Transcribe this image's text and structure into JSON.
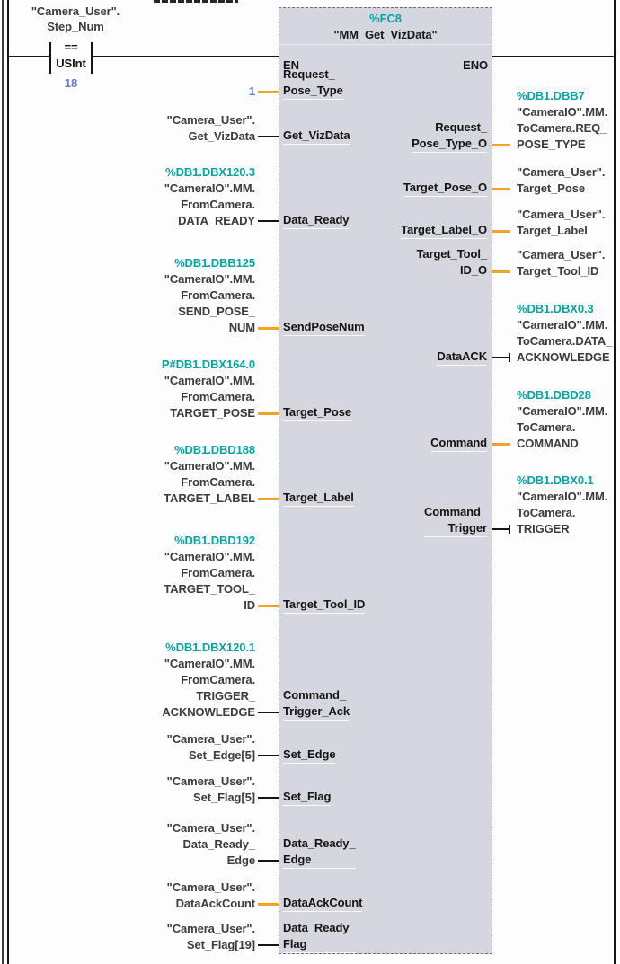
{
  "colors": {
    "address_teal": "#0aa3a3",
    "value_blue": "#6379d3",
    "wire_amber": "#efa426",
    "wire_black": "#141414",
    "block_fill": "#d6d6de"
  },
  "comparator": {
    "operand_lines": [
      "\"Camera_User\".",
      "Step_Num"
    ],
    "operator": "==",
    "data_type": "USInt",
    "compare_value": "18"
  },
  "block": {
    "address": "%FC8",
    "title": "\"MM_Get_VizData\"",
    "en": "EN",
    "eno": "ENO",
    "left_pins": [
      {
        "id": "request-pose-type",
        "label_lines": [
          "Request_",
          "Pose_Type"
        ],
        "operand_lines": [
          {
            "text": "1",
            "kind": "value"
          }
        ],
        "wire": "amber"
      },
      {
        "id": "get-vizdata",
        "label_lines": [
          "Get_VizData"
        ],
        "operand_lines": [
          {
            "text": "\"Camera_User\".",
            "kind": "name"
          },
          {
            "text": "Get_VizData",
            "kind": "name"
          }
        ],
        "wire": "black"
      },
      {
        "id": "data-ready",
        "label_lines": [
          "Data_Ready"
        ],
        "operand_lines": [
          {
            "text": "%DB1.DBX120.3",
            "kind": "address"
          },
          {
            "text": "\"CameraIO\".MM.",
            "kind": "name"
          },
          {
            "text": "FromCamera.",
            "kind": "name"
          },
          {
            "text": "DATA_READY",
            "kind": "name"
          }
        ],
        "wire": "black"
      },
      {
        "id": "sendposenum",
        "label_lines": [
          "SendPoseNum"
        ],
        "operand_lines": [
          {
            "text": "%DB1.DBB125",
            "kind": "address"
          },
          {
            "text": "\"CameraIO\".MM.",
            "kind": "name"
          },
          {
            "text": "FromCamera.",
            "kind": "name"
          },
          {
            "text": "SEND_POSE_",
            "kind": "name"
          },
          {
            "text": "NUM",
            "kind": "name"
          }
        ],
        "wire": "amber"
      },
      {
        "id": "target-pose",
        "label_lines": [
          "Target_Pose"
        ],
        "operand_lines": [
          {
            "text": "P#DB1.DBX164.0",
            "kind": "address"
          },
          {
            "text": "\"CameraIO\".MM.",
            "kind": "name"
          },
          {
            "text": "FromCamera.",
            "kind": "name"
          },
          {
            "text": "TARGET_POSE",
            "kind": "name"
          }
        ],
        "wire": "amber"
      },
      {
        "id": "target-label",
        "label_lines": [
          "Target_Label"
        ],
        "operand_lines": [
          {
            "text": "%DB1.DBD188",
            "kind": "address"
          },
          {
            "text": "\"CameraIO\".MM.",
            "kind": "name"
          },
          {
            "text": "FromCamera.",
            "kind": "name"
          },
          {
            "text": "TARGET_LABEL",
            "kind": "name"
          }
        ],
        "wire": "amber"
      },
      {
        "id": "target-tool-id",
        "label_lines": [
          "Target_Tool_ID"
        ],
        "operand_lines": [
          {
            "text": "%DB1.DBD192",
            "kind": "address"
          },
          {
            "text": "\"CameraIO\".MM.",
            "kind": "name"
          },
          {
            "text": "FromCamera.",
            "kind": "name"
          },
          {
            "text": "TARGET_TOOL_",
            "kind": "name"
          },
          {
            "text": "ID",
            "kind": "name"
          }
        ],
        "wire": "amber"
      },
      {
        "id": "command-trigger-ack",
        "label_lines": [
          "Command_",
          "Trigger_Ack"
        ],
        "operand_lines": [
          {
            "text": "%DB1.DBX120.1",
            "kind": "address"
          },
          {
            "text": "\"CameraIO\".MM.",
            "kind": "name"
          },
          {
            "text": "FromCamera.",
            "kind": "name"
          },
          {
            "text": "TRIGGER_",
            "kind": "name"
          },
          {
            "text": "ACKNOWLEDGE",
            "kind": "name"
          }
        ],
        "wire": "black"
      },
      {
        "id": "set-edge",
        "label_lines": [
          "Set_Edge"
        ],
        "operand_lines": [
          {
            "text": "\"Camera_User\".",
            "kind": "name"
          },
          {
            "text": "Set_Edge[5]",
            "kind": "name"
          }
        ],
        "wire": "black"
      },
      {
        "id": "set-flag",
        "label_lines": [
          "Set_Flag"
        ],
        "operand_lines": [
          {
            "text": "\"Camera_User\".",
            "kind": "name"
          },
          {
            "text": "Set_Flag[5]",
            "kind": "name"
          }
        ],
        "wire": "black"
      },
      {
        "id": "data-ready-edge",
        "label_lines": [
          "Data_Ready_",
          "Edge"
        ],
        "operand_lines": [
          {
            "text": "\"Camera_User\".",
            "kind": "name"
          },
          {
            "text": "Data_Ready_",
            "kind": "name"
          },
          {
            "text": "Edge",
            "kind": "name"
          }
        ],
        "wire": "black"
      },
      {
        "id": "dataackcount",
        "label_lines": [
          "DataAckCount"
        ],
        "operand_lines": [
          {
            "text": "\"Camera_User\".",
            "kind": "name"
          },
          {
            "text": "DataAckCount",
            "kind": "name"
          }
        ],
        "wire": "amber"
      },
      {
        "id": "data-ready-flag",
        "label_lines": [
          "Data_Ready_",
          "Flag"
        ],
        "operand_lines": [
          {
            "text": "\"Camera_User\".",
            "kind": "name"
          },
          {
            "text": "Set_Flag[19]",
            "kind": "name"
          }
        ],
        "wire": "black"
      }
    ],
    "right_pins": [
      {
        "id": "request-pose-type-o",
        "label_lines": [
          "Request_",
          "Pose_Type_O"
        ],
        "operand_lines": [
          {
            "text": "%DB1.DBB7",
            "kind": "address"
          },
          {
            "text": "\"CameraIO\".MM.",
            "kind": "name"
          },
          {
            "text": "ToCamera.REQ_",
            "kind": "name"
          },
          {
            "text": "POSE_TYPE",
            "kind": "name"
          }
        ],
        "wire": "amber",
        "tick": false
      },
      {
        "id": "target-pose-o",
        "label_lines": [
          "Target_Pose_O"
        ],
        "operand_lines": [
          {
            "text": "\"Camera_User\".",
            "kind": "name"
          },
          {
            "text": "Target_Pose",
            "kind": "name"
          }
        ],
        "wire": "amber",
        "tick": false
      },
      {
        "id": "target-label-o",
        "label_lines": [
          "Target_Label_O"
        ],
        "operand_lines": [
          {
            "text": "\"Camera_User\".",
            "kind": "name"
          },
          {
            "text": "Target_Label",
            "kind": "name"
          }
        ],
        "wire": "amber",
        "tick": false
      },
      {
        "id": "target-tool-id-o",
        "label_lines": [
          "Target_Tool_",
          "ID_O"
        ],
        "operand_lines": [
          {
            "text": "\"Camera_User\".",
            "kind": "name"
          },
          {
            "text": "Target_Tool_ID",
            "kind": "name"
          }
        ],
        "wire": "amber",
        "tick": false
      },
      {
        "id": "dataack",
        "label_lines": [
          "DataACK"
        ],
        "operand_lines": [
          {
            "text": "%DB1.DBX0.3",
            "kind": "address"
          },
          {
            "text": "\"CameraIO\".MM.",
            "kind": "name"
          },
          {
            "text": "ToCamera.DATA_",
            "kind": "name"
          },
          {
            "text": "ACKNOWLEDGE",
            "kind": "name"
          }
        ],
        "wire": "black",
        "tick": true
      },
      {
        "id": "command",
        "label_lines": [
          "Command"
        ],
        "operand_lines": [
          {
            "text": "%DB1.DBD28",
            "kind": "address"
          },
          {
            "text": "\"CameraIO\".MM.",
            "kind": "name"
          },
          {
            "text": "ToCamera.",
            "kind": "name"
          },
          {
            "text": "COMMAND",
            "kind": "name"
          }
        ],
        "wire": "amber",
        "tick": false
      },
      {
        "id": "command-trigger",
        "label_lines": [
          "Command_",
          "Trigger"
        ],
        "operand_lines": [
          {
            "text": "%DB1.DBX0.1",
            "kind": "address"
          },
          {
            "text": "\"CameraIO\".MM.",
            "kind": "name"
          },
          {
            "text": "ToCamera.",
            "kind": "name"
          },
          {
            "text": "TRIGGER",
            "kind": "name"
          }
        ],
        "wire": "black",
        "tick": true
      }
    ]
  }
}
